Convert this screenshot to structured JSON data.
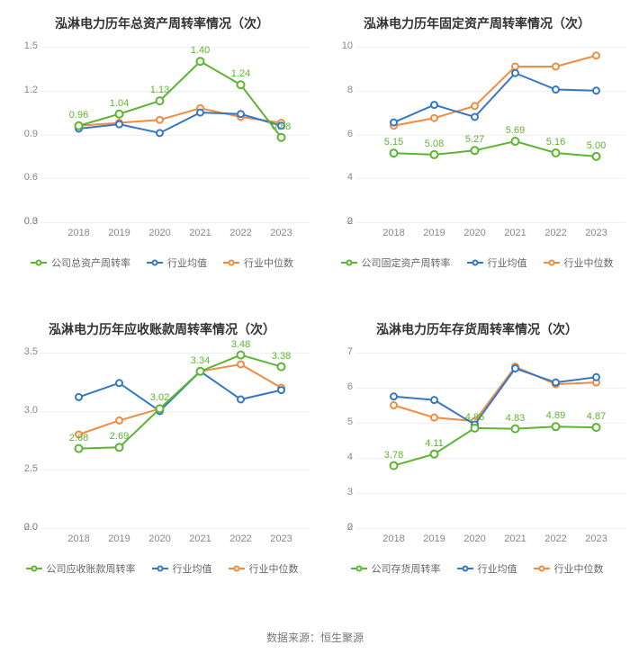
{
  "source_label": "数据来源：恒生聚源",
  "colors": {
    "company": "#5cb531",
    "industry_mean": "#3478c5",
    "industry_median": "#f08c42",
    "grid": "#f0f0f0",
    "axis_text": "#888888",
    "title": "#333333"
  },
  "legend_labels": {
    "industry_mean": "行业均值",
    "industry_median": "行业中位数"
  },
  "charts": [
    {
      "id": "total_asset",
      "title": "泓淋电力历年总资产周转率情况（次）",
      "legend_company": "公司总资产周转率",
      "categories": [
        "2018",
        "2019",
        "2020",
        "2021",
        "2022",
        "2023"
      ],
      "ymin": 0,
      "ymax": 1.5,
      "ystep": 0.3,
      "label_fmt": 2,
      "show_labels_on": "company",
      "series": {
        "company": [
          0.96,
          1.04,
          1.13,
          1.4,
          1.24,
          0.88
        ],
        "industry_mean": [
          0.94,
          0.97,
          0.91,
          1.05,
          1.04,
          0.96
        ],
        "industry_median": [
          0.96,
          0.98,
          1.0,
          1.08,
          1.02,
          0.98
        ]
      }
    },
    {
      "id": "fixed_asset",
      "title": "泓淋电力历年固定资产周转率情况（次）",
      "legend_company": "公司固定资产周转率",
      "categories": [
        "2018",
        "2019",
        "2020",
        "2021",
        "2022",
        "2023"
      ],
      "ymin": 0,
      "ymax": 10,
      "ystep": 2,
      "label_fmt": 2,
      "show_labels_on": "company",
      "series": {
        "company": [
          5.15,
          5.08,
          5.27,
          5.69,
          5.16,
          5.0
        ],
        "industry_mean": [
          6.55,
          7.35,
          6.8,
          8.8,
          8.05,
          8.0
        ],
        "industry_median": [
          6.4,
          6.75,
          7.3,
          9.1,
          9.1,
          9.6
        ]
      }
    },
    {
      "id": "receivable",
      "title": "泓淋电力历年应收账款周转率情况（次）",
      "legend_company": "公司应收账款周转率",
      "categories": [
        "2018",
        "2019",
        "2020",
        "2021",
        "2022",
        "2023"
      ],
      "ymin": 0,
      "ymax": 3.5,
      "ystep": 0.5,
      "label_fmt": 2,
      "show_labels_on": "company",
      "series": {
        "company": [
          2.68,
          2.69,
          3.02,
          3.34,
          3.48,
          3.38
        ],
        "industry_mean": [
          3.12,
          3.24,
          3.0,
          3.34,
          3.1,
          3.18
        ],
        "industry_median": [
          2.8,
          2.92,
          3.02,
          3.34,
          3.4,
          3.2
        ]
      }
    },
    {
      "id": "inventory",
      "title": "泓淋电力历年存货周转率情况（次）",
      "legend_company": "公司存货周转率",
      "categories": [
        "2018",
        "2019",
        "2020",
        "2021",
        "2022",
        "2023"
      ],
      "ymin": 0,
      "ymax": 7,
      "ystep": 1,
      "label_fmt": 2,
      "show_labels_on": "company",
      "series": {
        "company": [
          3.78,
          4.11,
          4.85,
          4.83,
          4.89,
          4.87
        ],
        "industry_mean": [
          5.75,
          5.65,
          4.95,
          6.55,
          6.15,
          6.3
        ],
        "industry_median": [
          5.5,
          5.15,
          5.05,
          6.6,
          6.1,
          6.15
        ]
      }
    }
  ]
}
